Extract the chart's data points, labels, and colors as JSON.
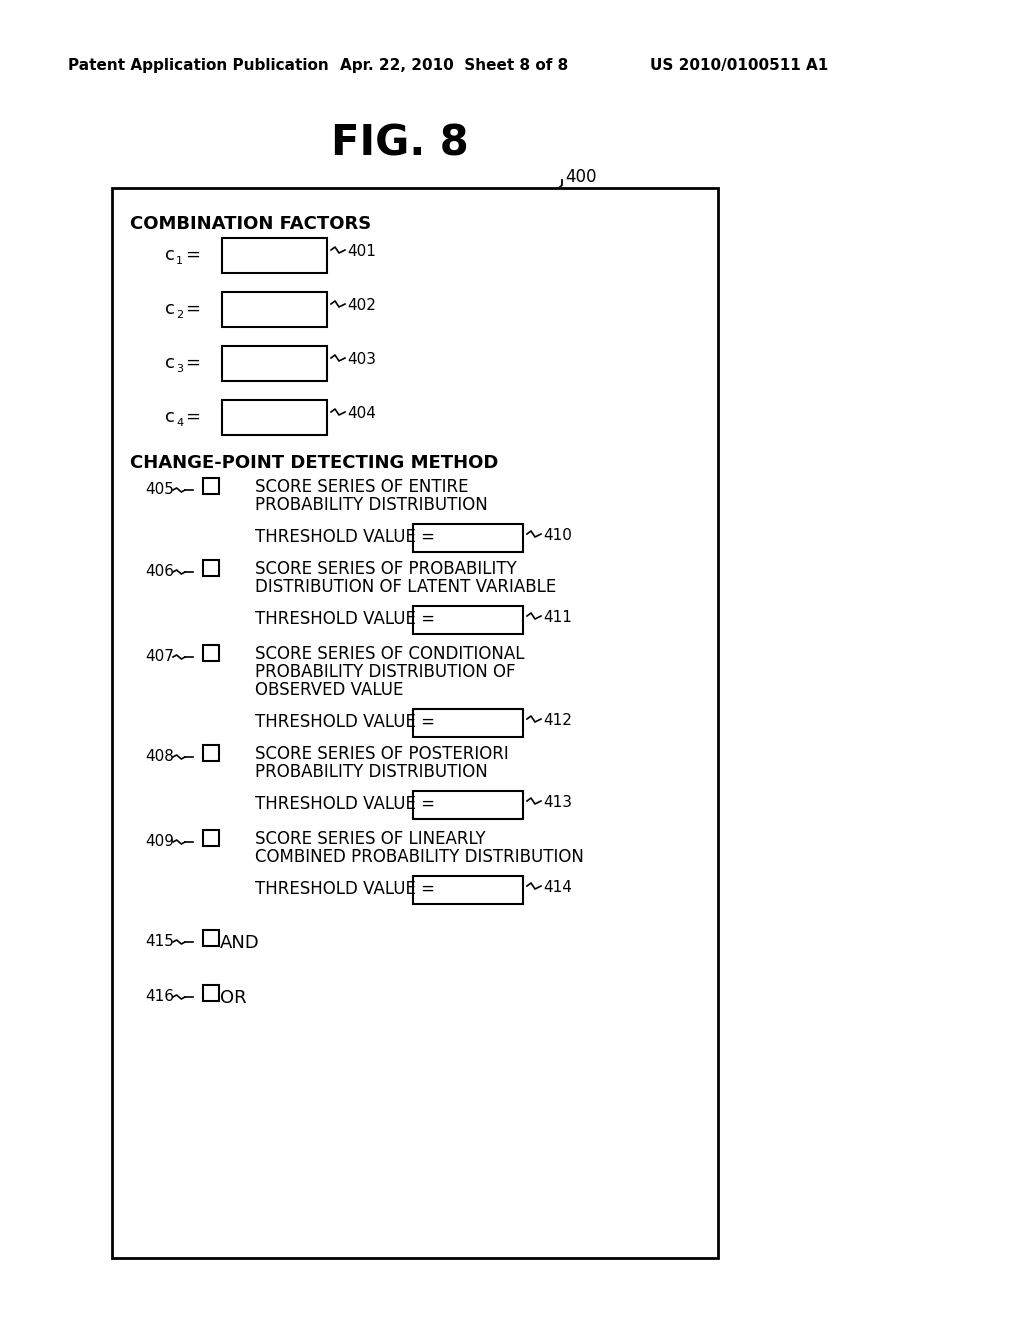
{
  "title": "FIG. 8",
  "header_left": "Patent Application Publication",
  "header_mid": "Apr. 22, 2010  Sheet 8 of 8",
  "header_right": "US 2010/0100511 A1",
  "fig_label": "400",
  "bg_color": "#ffffff",
  "combination_factors_label": "COMBINATION FACTORS",
  "c_refs": [
    "401",
    "402",
    "403",
    "404"
  ],
  "change_point_label": "CHANGE-POINT DETECTING METHOD",
  "checkboxes": [
    {
      "ref": "405",
      "lines": [
        "SCORE SERIES OF ENTIRE",
        "PROBABILITY DISTRIBUTION"
      ],
      "threshold_ref": "410"
    },
    {
      "ref": "406",
      "lines": [
        "SCORE SERIES OF PROBABILITY",
        "DISTRIBUTION OF LATENT VARIABLE"
      ],
      "threshold_ref": "411"
    },
    {
      "ref": "407",
      "lines": [
        "SCORE SERIES OF CONDITIONAL",
        "PROBABILITY DISTRIBUTION OF",
        "OBSERVED VALUE"
      ],
      "threshold_ref": "412"
    },
    {
      "ref": "408",
      "lines": [
        "SCORE SERIES OF POSTERIORI",
        "PROBABILITY DISTRIBUTION"
      ],
      "threshold_ref": "413"
    },
    {
      "ref": "409",
      "lines": [
        "SCORE SERIES OF LINEARLY",
        "COMBINED PROBABILITY DISTRIBUTION"
      ],
      "threshold_ref": "414"
    }
  ],
  "bottom_items": [
    {
      "ref": "415",
      "label": "AND"
    },
    {
      "ref": "416",
      "label": "OR"
    }
  ],
  "threshold_label": "THRESHOLD VALUE ="
}
